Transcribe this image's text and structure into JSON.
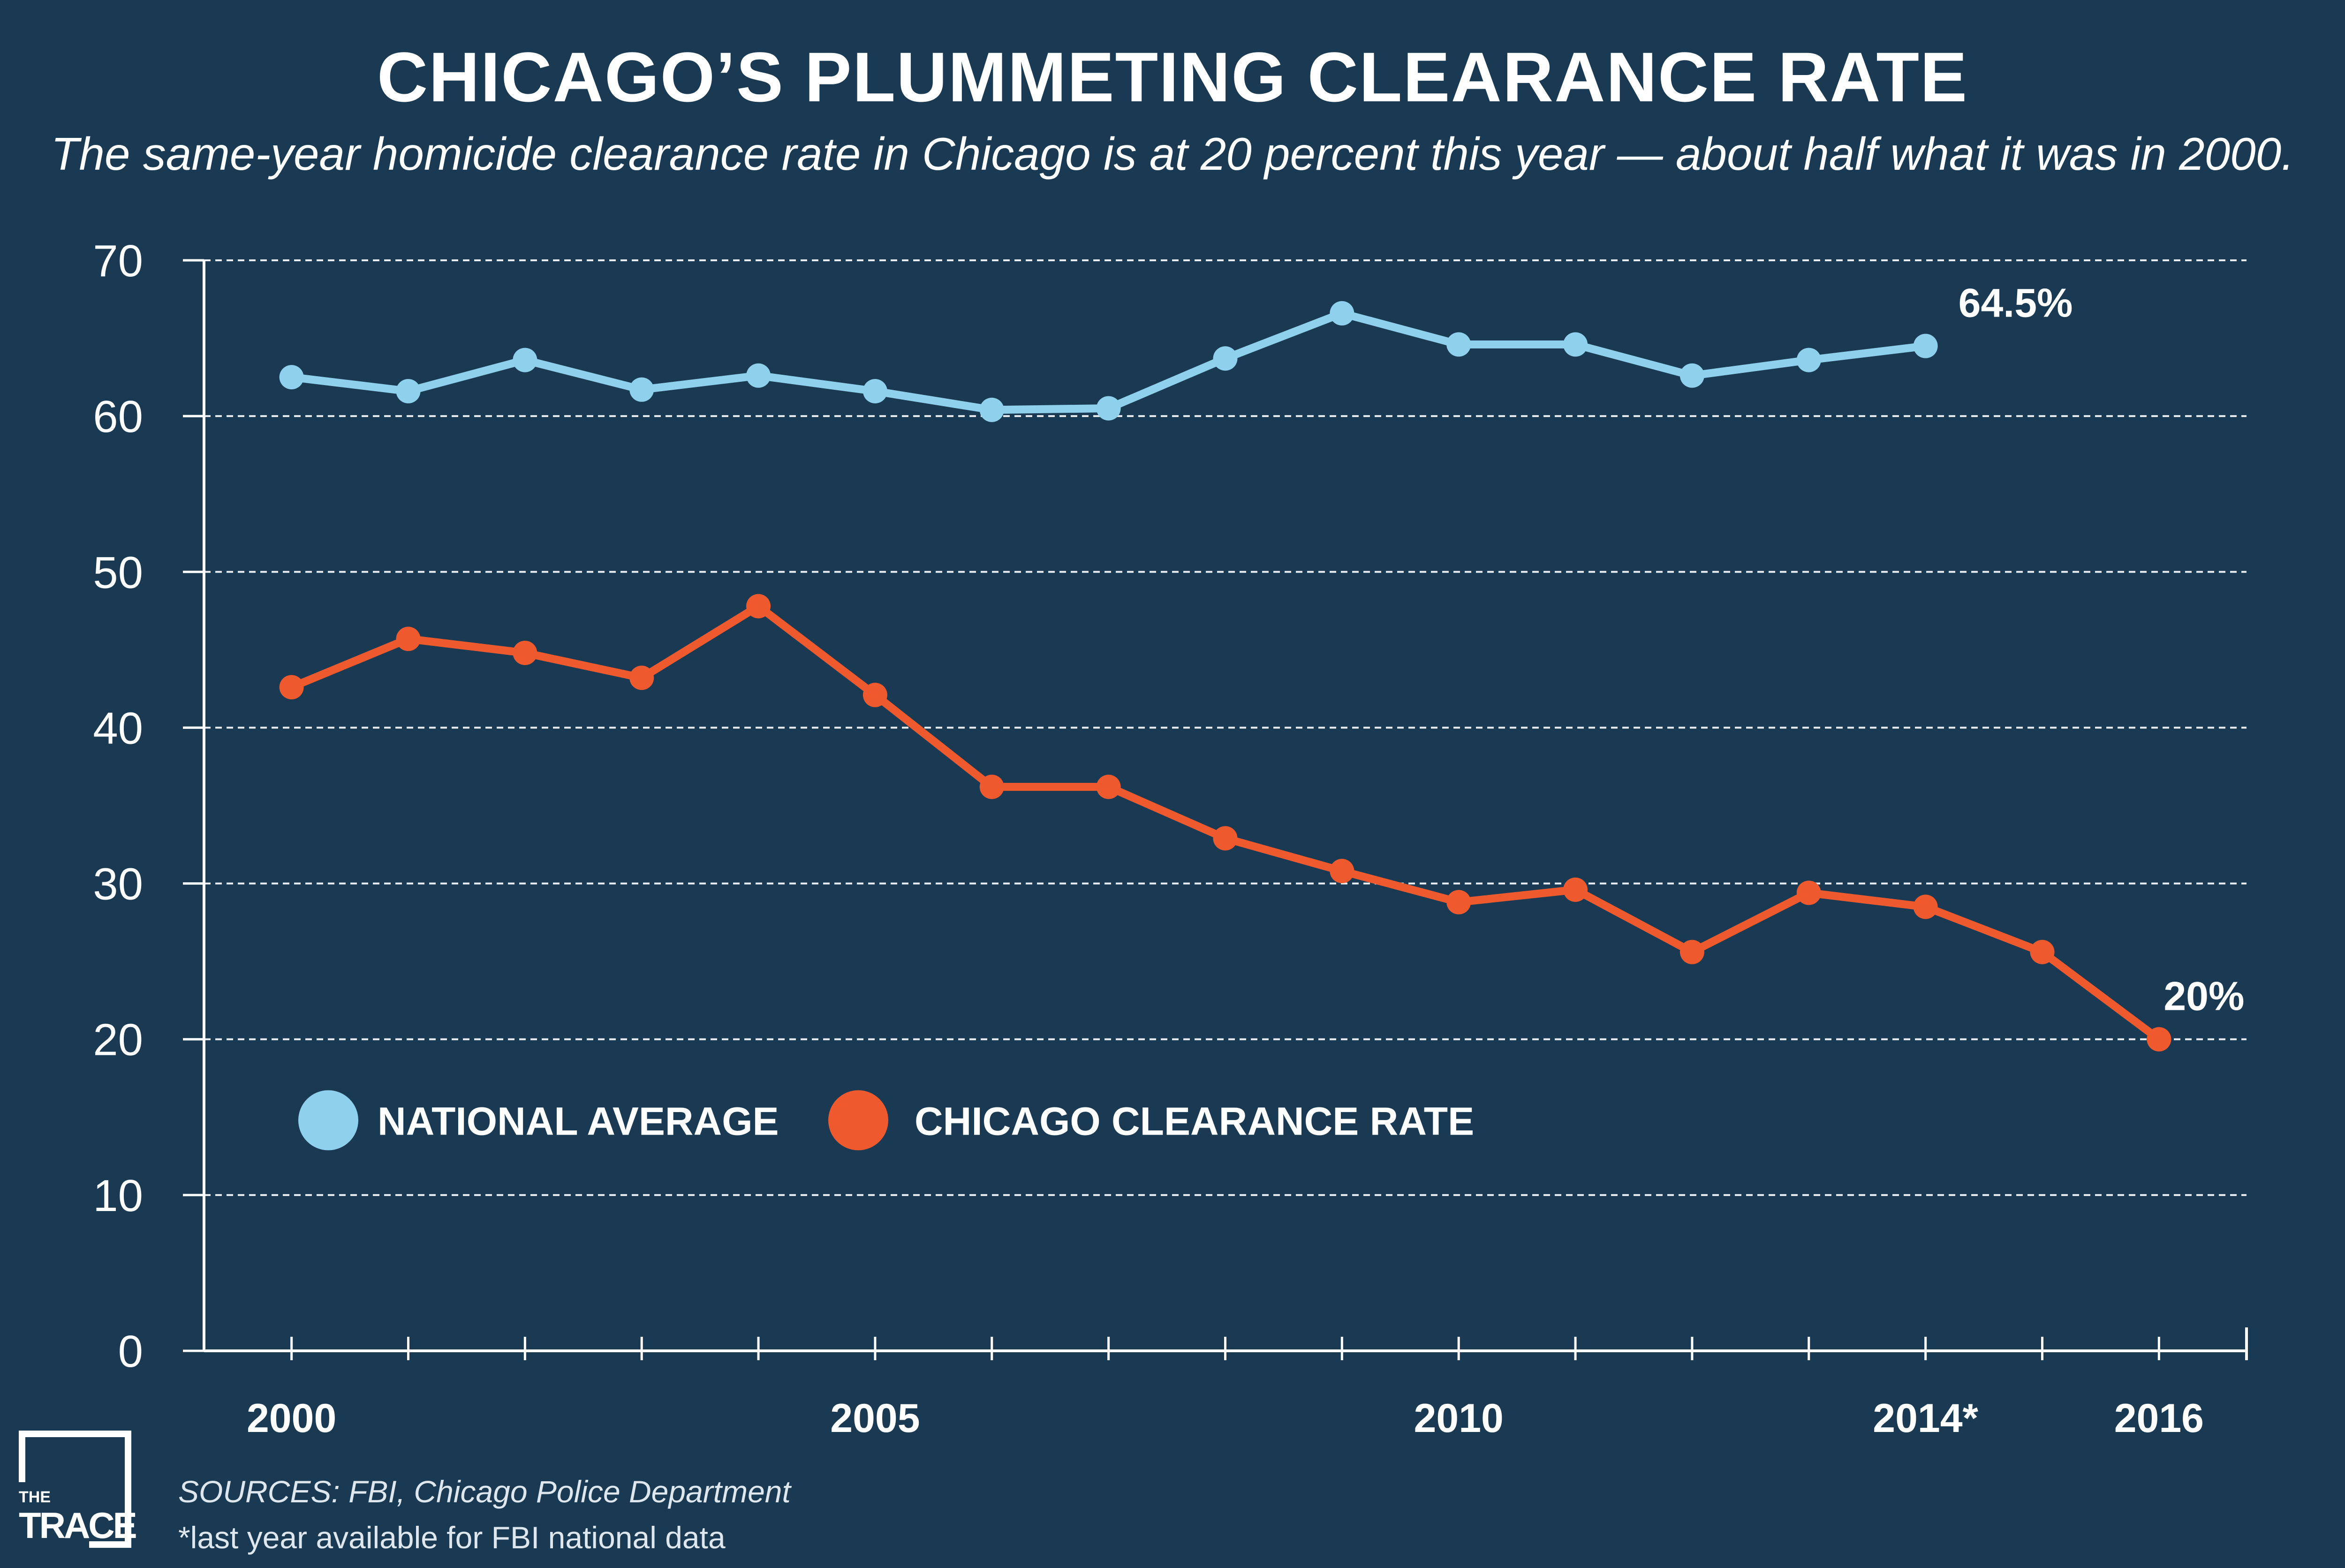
{
  "title": "CHICAGO’S PLUMMETING CLEARANCE RATE",
  "subtitle": "The same-year homicide clearance rate in Chicago is at 20 percent this year — about half what it was in 2000.",
  "colors": {
    "background": "#193a52",
    "national": "#8fd0ec",
    "chicago": "#ee5a2e",
    "grid": "#e8eef3"
  },
  "chart_data": {
    "type": "line",
    "x": [
      2000,
      2001,
      2002,
      2003,
      2004,
      2005,
      2006,
      2007,
      2008,
      2009,
      2010,
      2011,
      2012,
      2013,
      2014,
      2015,
      2016
    ],
    "x_tick_labels": [
      {
        "year": 2000,
        "label": "2000"
      },
      {
        "year": 2005,
        "label": "2005"
      },
      {
        "year": 2010,
        "label": "2010"
      },
      {
        "year": 2014,
        "label": "2014*"
      },
      {
        "year": 2016,
        "label": "2016"
      }
    ],
    "y_ticks": [
      0,
      10,
      20,
      30,
      40,
      50,
      60,
      70
    ],
    "ylim": [
      0,
      70
    ],
    "xlim": [
      1999.25,
      2016.75
    ],
    "grid": "horizontal dashed",
    "series": [
      {
        "name": "NATIONAL AVERAGE",
        "color": "#8fd0ec",
        "x": [
          2000,
          2001,
          2002,
          2003,
          2004,
          2005,
          2006,
          2007,
          2008,
          2009,
          2010,
          2011,
          2012,
          2013,
          2014
        ],
        "values": [
          62.5,
          61.6,
          63.6,
          61.7,
          62.6,
          61.6,
          60.4,
          60.5,
          63.7,
          66.6,
          64.6,
          64.6,
          62.6,
          63.6,
          64.5
        ],
        "end_label": "64.5%"
      },
      {
        "name": "CHICAGO CLEARANCE RATE",
        "color": "#ee5a2e",
        "x": [
          2000,
          2001,
          2002,
          2003,
          2004,
          2005,
          2006,
          2007,
          2008,
          2009,
          2010,
          2011,
          2012,
          2013,
          2014,
          2015,
          2016
        ],
        "values": [
          42.6,
          45.7,
          44.8,
          43.2,
          47.8,
          42.1,
          36.2,
          36.2,
          32.9,
          30.8,
          28.8,
          29.6,
          25.6,
          29.4,
          28.5,
          25.6,
          20.0
        ],
        "end_label": "20%"
      }
    ],
    "legend_placement": "lower-left inside plot"
  },
  "footer": {
    "sources": "SOURCES:  FBI, Chicago Police Department",
    "note": "*last year available for FBI national data"
  },
  "logo": {
    "line1": "THE",
    "line2": "TRACE"
  }
}
